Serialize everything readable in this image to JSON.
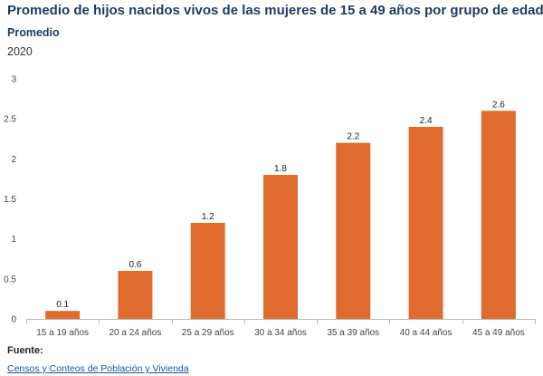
{
  "header": {
    "title": "Promedio de hijos nacidos vivos de las mujeres de 15 a 49 años por grupo de edad",
    "subtitle": "Promedio",
    "year": "2020"
  },
  "footer": {
    "source_label": "Fuente:",
    "source_link": "Censos y Conteos de Población y Vivienda"
  },
  "chart_data": {
    "type": "bar",
    "categories": [
      "15 a 19 años",
      "20 a 24 años",
      "25 a 29 años",
      "30 a 34 años",
      "35 a 39 años",
      "40 a 44 años",
      "45 a 49 años"
    ],
    "values": [
      0.1,
      0.6,
      1.2,
      1.8,
      2.2,
      2.4,
      2.6
    ],
    "data_labels": [
      "0.1",
      "0.6",
      "1.2",
      "1.8",
      "2.2",
      "2.4",
      "2.6"
    ],
    "ylim": [
      0,
      3
    ],
    "yticks": [
      0,
      0.5,
      1,
      1.5,
      2,
      2.5,
      3
    ],
    "ytick_labels": [
      "0",
      "0.5",
      "1",
      "1.5",
      "2",
      "2.5",
      "3"
    ],
    "bar_color": "#e06b2e",
    "grid": false,
    "legend": "none"
  }
}
